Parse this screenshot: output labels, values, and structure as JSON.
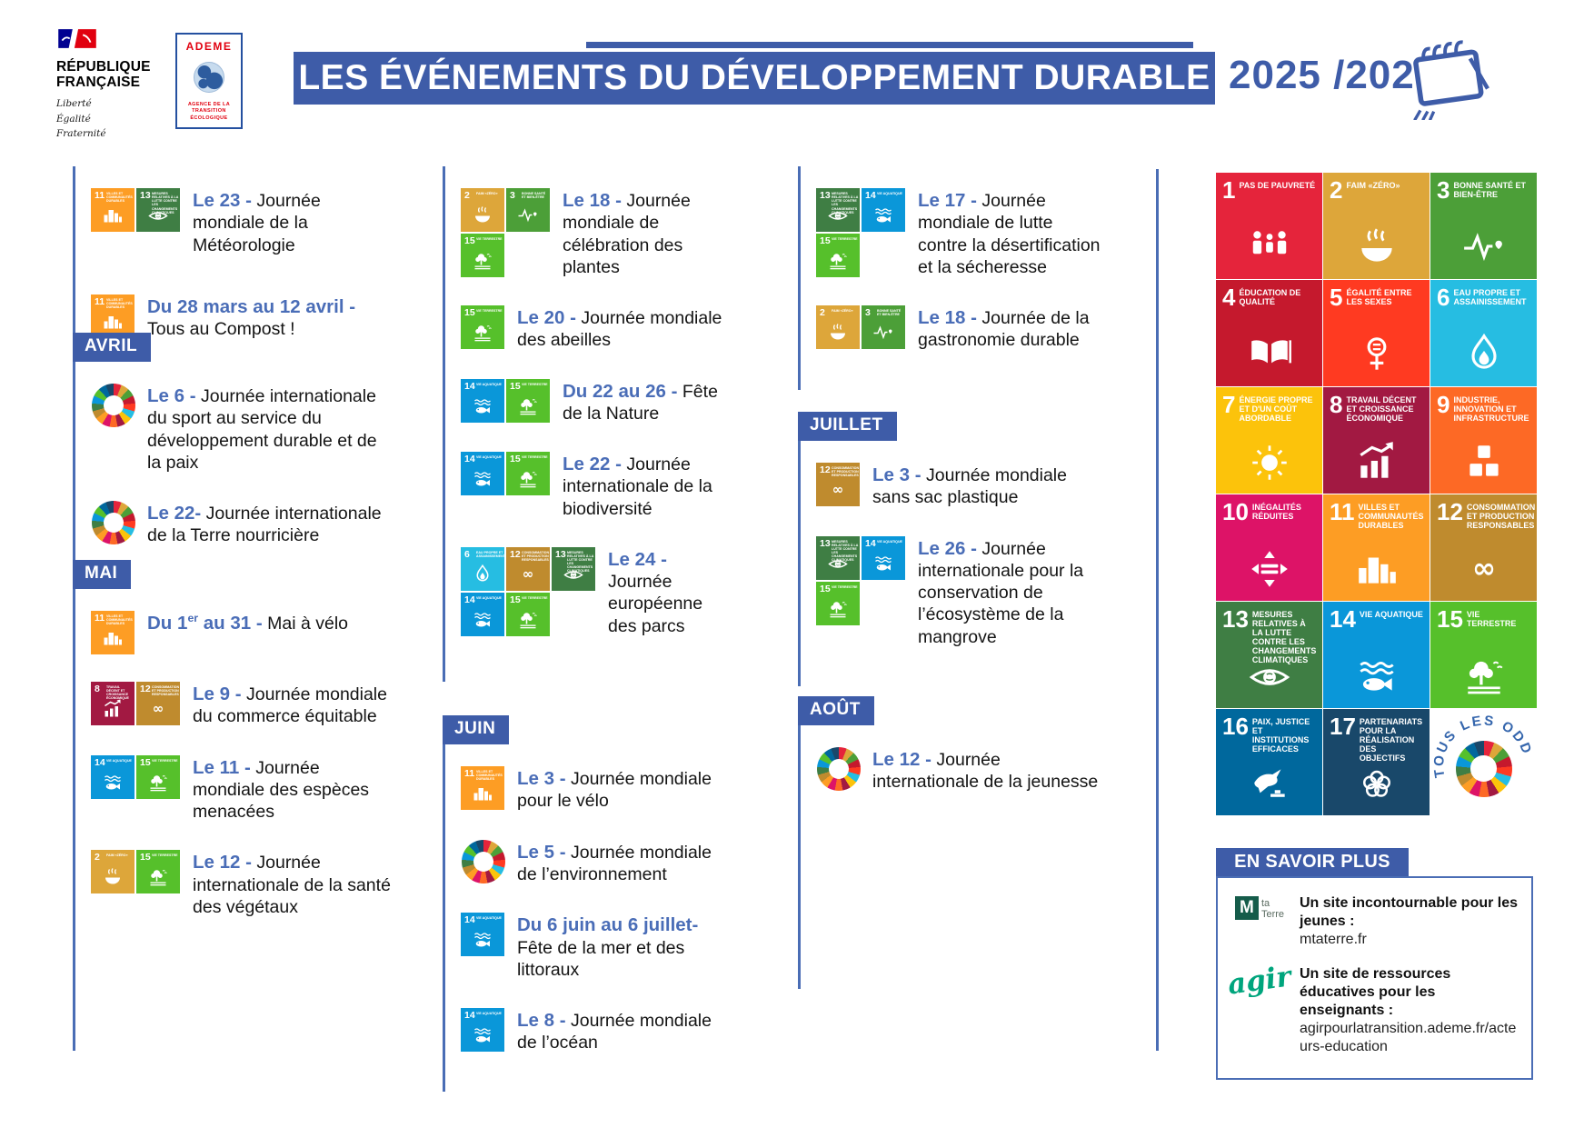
{
  "header": {
    "republique": {
      "name_line1": "RÉPUBLIQUE",
      "name_line2": "FRANÇAISE",
      "motto_lines": [
        "Liberté",
        "Égalité",
        "Fraternité"
      ]
    },
    "ademe": {
      "name": "ADEME",
      "subtitle_lines": [
        "AGENCE DE LA",
        "TRANSITION",
        "ÉCOLOGIQUE"
      ]
    },
    "title": "LES ÉVÉNEMENTS DU DÉVELOPPEMENT DURABLE",
    "years": "2025 /2026"
  },
  "colors": {
    "primary_blue": "#3E5CA8",
    "date_blue": "#4A6DB7",
    "text_black": "#141414",
    "ademe_red": "#E1000F",
    "agir_green": "#00A57D"
  },
  "sdg": {
    "1": {
      "color": "#E5243B",
      "label": "PAS DE PAUVRETÉ"
    },
    "2": {
      "color": "#DDA63A",
      "label": "FAIM «ZÉRO»"
    },
    "3": {
      "color": "#4C9F38",
      "label": "BONNE SANTÉ ET BIEN-ÊTRE"
    },
    "4": {
      "color": "#C5192D",
      "label": "ÉDUCATION DE QUALITÉ"
    },
    "5": {
      "color": "#FF3A21",
      "label": "ÉGALITÉ ENTRE LES SEXES"
    },
    "6": {
      "color": "#26BDE2",
      "label": "EAU PROPRE ET ASSAINISSEMENT"
    },
    "7": {
      "color": "#FCC30B",
      "label": "ÉNERGIE PROPRE ET D'UN COÛT ABORDABLE"
    },
    "8": {
      "color": "#A21942",
      "label": "TRAVAIL DÉCENT ET CROISSANCE ÉCONOMIQUE"
    },
    "9": {
      "color": "#FD6925",
      "label": "INDUSTRIE, INNOVATION ET INFRASTRUCTURE"
    },
    "10": {
      "color": "#DD1367",
      "label": "INÉGALITÉS RÉDUITES"
    },
    "11": {
      "color": "#FD9D24",
      "label": "VILLES ET COMMUNAUTÉS DURABLES"
    },
    "12": {
      "color": "#BF8B2E",
      "label": "CONSOMMATION ET PRODUCTION RESPONSABLES"
    },
    "13": {
      "color": "#3F7E44",
      "label": "MESURES RELATIVES À LA LUTTE CONTRE LES CHANGEMENTS CLIMATIQUES"
    },
    "14": {
      "color": "#0A97D9",
      "label": "VIE AQUATIQUE"
    },
    "15": {
      "color": "#56C02B",
      "label": "VIE TERRESTRE"
    },
    "16": {
      "color": "#00689D",
      "label": "PAIX, JUSTICE ET INSTITUTIONS EFFICACES"
    },
    "17": {
      "color": "#19486A",
      "label": "PARTENARIATS POUR LA RÉALISATION DES OBJECTIFS"
    }
  },
  "sections": [
    {
      "id": "mars-end",
      "month": null,
      "events": [
        {
          "icons": [
            11,
            13
          ],
          "date": "Le 23 -",
          "text": "Journée mondiale de la Météorologie"
        },
        {
          "icons": [
            11
          ],
          "date": "Du 28 mars au 12 avril -",
          "text": "Tous au Compost !",
          "break_after_date": true
        }
      ]
    },
    {
      "id": "avril",
      "month": "AVRIL",
      "events": [
        {
          "icons": [
            "wheel"
          ],
          "date": "Le 6 -",
          "text": "Journée internationale du sport au service du développement durable et de la paix"
        },
        {
          "icons": [
            "wheel"
          ],
          "date": "Le 22-",
          "text": "Journée internationale de la Terre nourricière"
        }
      ]
    },
    {
      "id": "mai",
      "month": "MAI",
      "events": [
        {
          "icons": [
            11
          ],
          "date": "Du 1er au 31 -",
          "text": "Mai à vélo"
        },
        {
          "icons": [
            8,
            12
          ],
          "date": "Le 9 -",
          "text": "Journée mondiale du commerce équitable"
        },
        {
          "icons": [
            14,
            15
          ],
          "date": "Le 11 -",
          "text": "Journée mondiale des espèces menacées"
        },
        {
          "icons": [
            2,
            15
          ],
          "date": "Le 12 -",
          "text": "Journée internationale de la santé des végétaux"
        }
      ]
    },
    {
      "id": "mai-suite",
      "month": null,
      "events": [
        {
          "icons": [
            2,
            3,
            15
          ],
          "date": "Le 18 -",
          "text": "Journée mondiale de célébration des plantes"
        },
        {
          "icons": [
            15
          ],
          "date": "Le 20 -",
          "text": "Journée mondiale des abeilles"
        },
        {
          "icons": [
            14,
            15
          ],
          "date": "Du 22 au 26 -",
          "text": "Fête de la Nature"
        },
        {
          "icons": [
            14,
            15
          ],
          "date": "Le 22 -",
          "text": "Journée internationale de la biodiversité"
        },
        {
          "icons": [
            6,
            12,
            13,
            14,
            15
          ],
          "date": "Le 24 -",
          "text": "Journée européenne des parcs"
        }
      ]
    },
    {
      "id": "juin",
      "month": "JUIN",
      "events": [
        {
          "icons": [
            11
          ],
          "date": "Le 3 -",
          "text": "Journée mondiale pour le vélo"
        },
        {
          "icons": [
            "wheel"
          ],
          "date": "Le 5 -",
          "text": "Journée mondiale de l’environnement"
        },
        {
          "icons": [
            14
          ],
          "date": "Du 6 juin au 6 juillet-",
          "text": "Fête de la mer et des littoraux"
        },
        {
          "icons": [
            14
          ],
          "date": "Le 8 -",
          "text": "Journée mondiale de l’océan"
        }
      ]
    },
    {
      "id": "juin-suite",
      "month": null,
      "events": [
        {
          "icons": [
            13,
            14,
            15
          ],
          "date": "Le 17 -",
          "text": "Journée mondiale de lutte contre la désertification et la sécheresse"
        },
        {
          "icons": [
            2,
            3
          ],
          "date": "Le 18 -",
          "text": "Journée de la gastronomie durable"
        }
      ]
    },
    {
      "id": "juillet",
      "month": "JUILLET",
      "events": [
        {
          "icons": [
            12
          ],
          "date": "Le 3 -",
          "text": "Journée mondiale sans sac plastique"
        },
        {
          "icons": [
            13,
            14,
            15
          ],
          "date": "Le 26 -",
          "text": "Journée internationale pour la conservation de l’écosystème de la mangrove"
        }
      ]
    },
    {
      "id": "aout",
      "month": "AOÛT",
      "events": [
        {
          "icons": [
            "wheel"
          ],
          "date": "Le 12 -",
          "text": "Journée internationale de la jeunesse"
        }
      ]
    }
  ],
  "sdg_grid": {
    "order": [
      1,
      2,
      3,
      4,
      5,
      6,
      7,
      8,
      9,
      10,
      11,
      12,
      13,
      14,
      15,
      16,
      17,
      "tous"
    ],
    "tous_label": "TOUS LES ODD"
  },
  "en_savoir_plus": {
    "title": "EN SAVOIR PLUS",
    "items": [
      {
        "logo": "mtaterre",
        "logo_text_1": "ta",
        "logo_text_2": "Terre",
        "logo_letter": "M",
        "bold": "Un site incontournable pour les jeunes :",
        "link": "mtaterre.fr"
      },
      {
        "logo": "agir",
        "logo_word": "agir",
        "bold": "Un site de ressources éducatives pour les enseignants :",
        "link": "agirpourlatransition.ademe.fr/acteurs-education"
      }
    ]
  }
}
